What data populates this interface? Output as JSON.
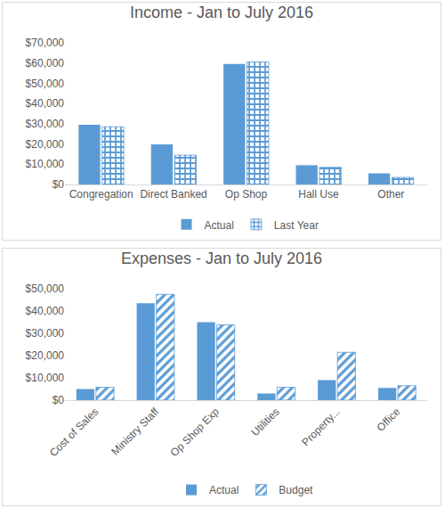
{
  "chart_data": [
    {
      "type": "bar",
      "title": "Income - Jan to July 2016",
      "categories": [
        "Congregation",
        "Direct Banked",
        "Op Shop",
        "Hall Use",
        "Other"
      ],
      "series": [
        {
          "name": "Actual",
          "color": "#5b9bd5",
          "marker": "solid",
          "values": [
            29500,
            19800,
            59500,
            9500,
            5500
          ]
        },
        {
          "name": "Last Year",
          "color": "#5b9bd5",
          "marker": "checkered",
          "values": [
            28500,
            14500,
            60500,
            8500,
            3500
          ]
        }
      ],
      "ylim": [
        0,
        70000
      ],
      "yticks": [
        {
          "value": 0,
          "label": "$0"
        },
        {
          "value": 10000,
          "label": "$10,000"
        },
        {
          "value": 20000,
          "label": "$20,000"
        },
        {
          "value": 30000,
          "label": "$30,000"
        },
        {
          "value": 40000,
          "label": "$40,000"
        },
        {
          "value": 50000,
          "label": "$50,000"
        },
        {
          "value": 60000,
          "label": "$60,000"
        },
        {
          "value": 70000,
          "label": "$70,000"
        }
      ],
      "grid": false,
      "legend": "bottom"
    },
    {
      "type": "bar",
      "title": "Expenses - Jan to July 2016",
      "categories": [
        "Cost of Sales",
        "Ministry Staff",
        "Op Shop Exp",
        "Utilities",
        "Property...",
        "Office"
      ],
      "series": [
        {
          "name": "Actual",
          "color": "#5b9bd5",
          "marker": "solid",
          "values": [
            5000,
            43500,
            35000,
            3000,
            9000,
            5500
          ]
        },
        {
          "name": "Budget",
          "color": "#5b9bd5",
          "marker": "striped",
          "values": [
            5800,
            47500,
            33800,
            5800,
            21500,
            6500
          ]
        }
      ],
      "ylim": [
        0,
        50000
      ],
      "yticks": [
        {
          "value": 0,
          "label": "$0"
        },
        {
          "value": 10000,
          "label": "$10,000"
        },
        {
          "value": 20000,
          "label": "$20,000"
        },
        {
          "value": 30000,
          "label": "$30,000"
        },
        {
          "value": 40000,
          "label": "$40,000"
        },
        {
          "value": 50000,
          "label": "$50,000"
        }
      ],
      "grid": false,
      "legend": "bottom"
    }
  ]
}
